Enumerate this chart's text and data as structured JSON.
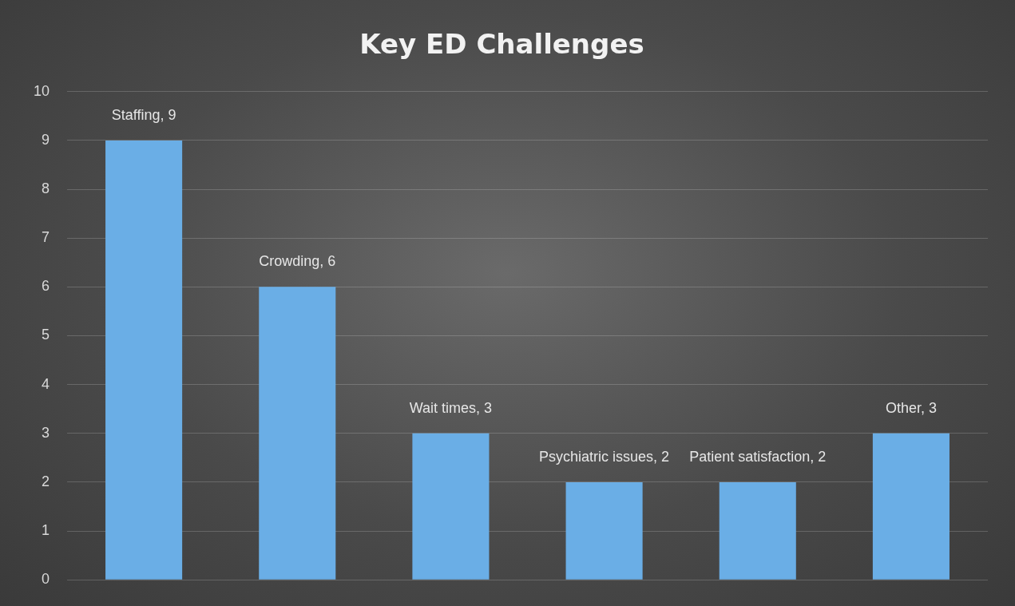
{
  "chart_data": {
    "type": "bar",
    "title": "Key ED Challenges",
    "categories": [
      null,
      null,
      null,
      null,
      null,
      null
    ],
    "values": [
      9,
      6,
      3,
      2,
      2,
      3
    ],
    "value_labels": [
      "Staffing, 9",
      "Crowding, 6",
      "Wait times, 3",
      "Psychiatric issues, 2",
      "Patient satisfaction, 2",
      "Other, 3"
    ],
    "color": "#6aaee6",
    "ylim": [
      0,
      10
    ],
    "yticks": [
      0,
      1,
      2,
      3,
      4,
      5,
      6,
      7,
      8,
      9,
      10
    ],
    "grid": "y",
    "tick_labels": "y"
  }
}
